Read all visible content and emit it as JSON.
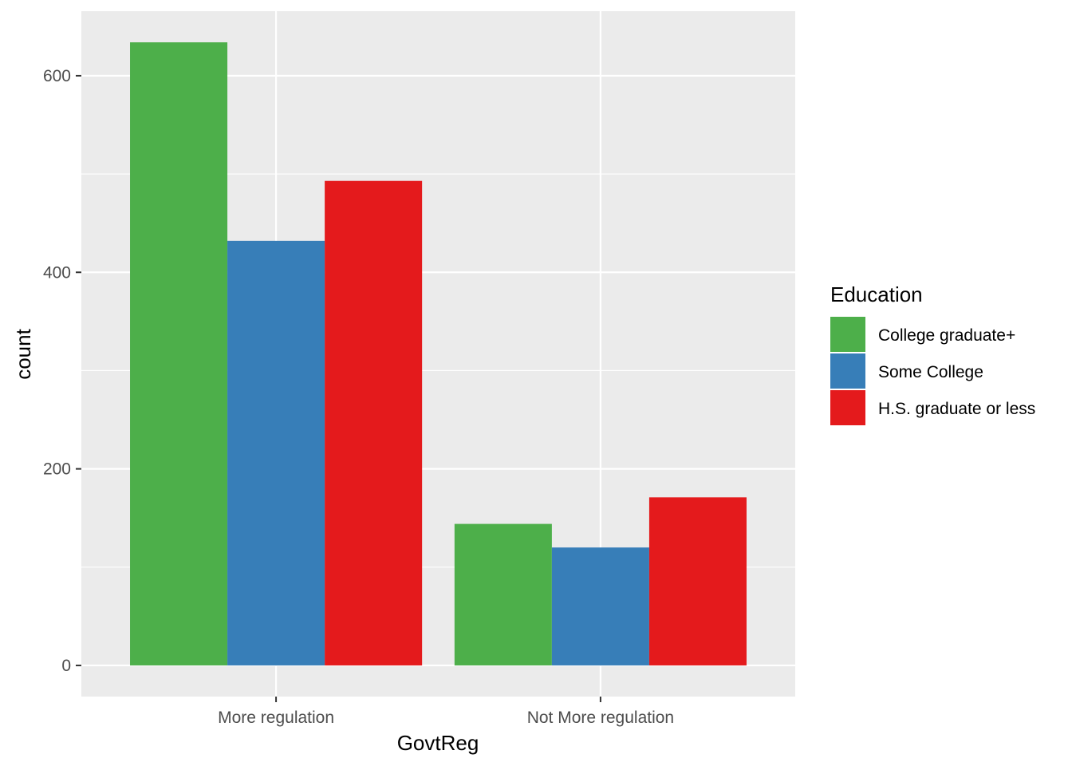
{
  "chart_data": {
    "type": "bar",
    "categories": [
      "More regulation",
      "Not More regulation"
    ],
    "series": [
      {
        "name": "College graduate+",
        "values": [
          634,
          144
        ],
        "color": "#4DAF4A"
      },
      {
        "name": "Some College",
        "values": [
          432,
          120
        ],
        "color": "#377EB8"
      },
      {
        "name": "H.S. graduate or less",
        "values": [
          493,
          171
        ],
        "color": "#E41A1C"
      }
    ],
    "xlabel": "GovtReg",
    "ylabel": "count",
    "ylim": [
      -31.7,
      665.7
    ],
    "yticks": [
      0,
      200,
      400,
      600
    ],
    "legend_title": "Education",
    "legend_position": "right",
    "grid": true,
    "panel_background": "#EBEBEB"
  }
}
